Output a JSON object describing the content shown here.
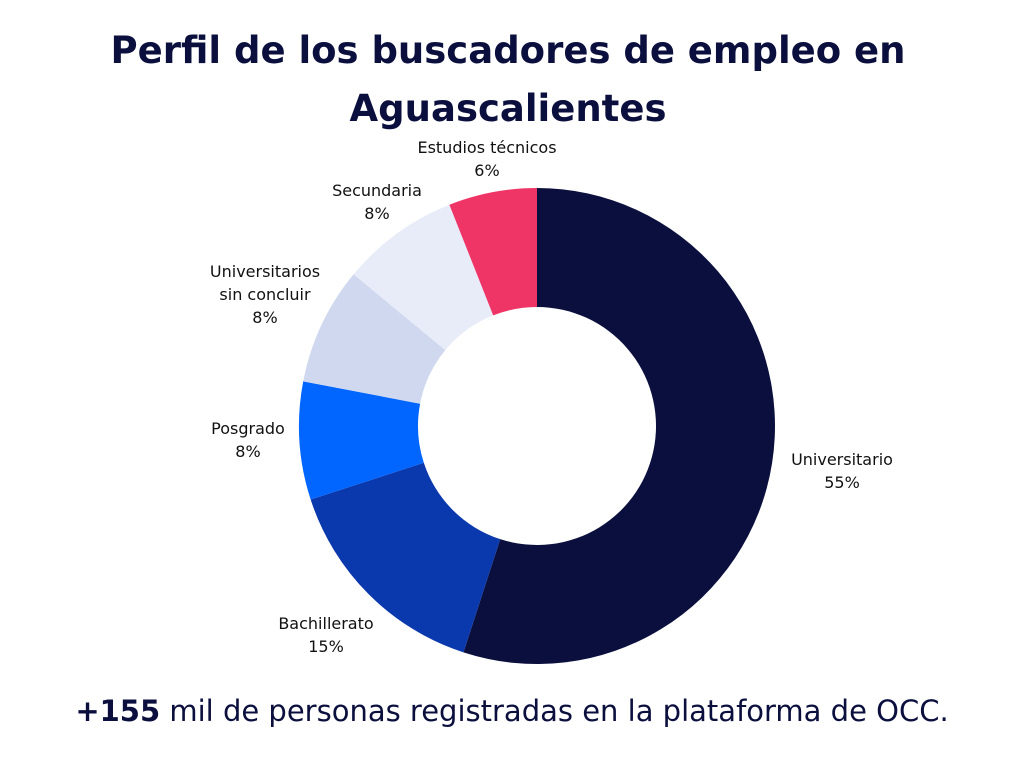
{
  "chart_data": {
    "type": "pie",
    "donut": true,
    "title_lines": [
      "Perfil de los buscadores de empleo en",
      "Aguascalientes"
    ],
    "slices": [
      {
        "label_lines": [
          "Universitario"
        ],
        "value": 55,
        "value_label": "55%",
        "color": "#0b0f3d"
      },
      {
        "label_lines": [
          "Bachillerato"
        ],
        "value": 15,
        "value_label": "15%",
        "color": "#0a38ad"
      },
      {
        "label_lines": [
          "Posgrado"
        ],
        "value": 8,
        "value_label": "8%",
        "color": "#0066ff"
      },
      {
        "label_lines": [
          "Universitarios",
          "sin concluir"
        ],
        "value": 8,
        "value_label": "8%",
        "color": "#cfd8ef"
      },
      {
        "label_lines": [
          "Secundaria"
        ],
        "value": 8,
        "value_label": "8%",
        "color": "#e8ecf8"
      },
      {
        "label_lines": [
          "Estudios técnicos"
        ],
        "value": 6,
        "value_label": "6%",
        "color": "#ef3466"
      }
    ]
  },
  "footer": {
    "highlight": "+155",
    "text": " mil de personas registradas en la plataforma de OCC."
  }
}
